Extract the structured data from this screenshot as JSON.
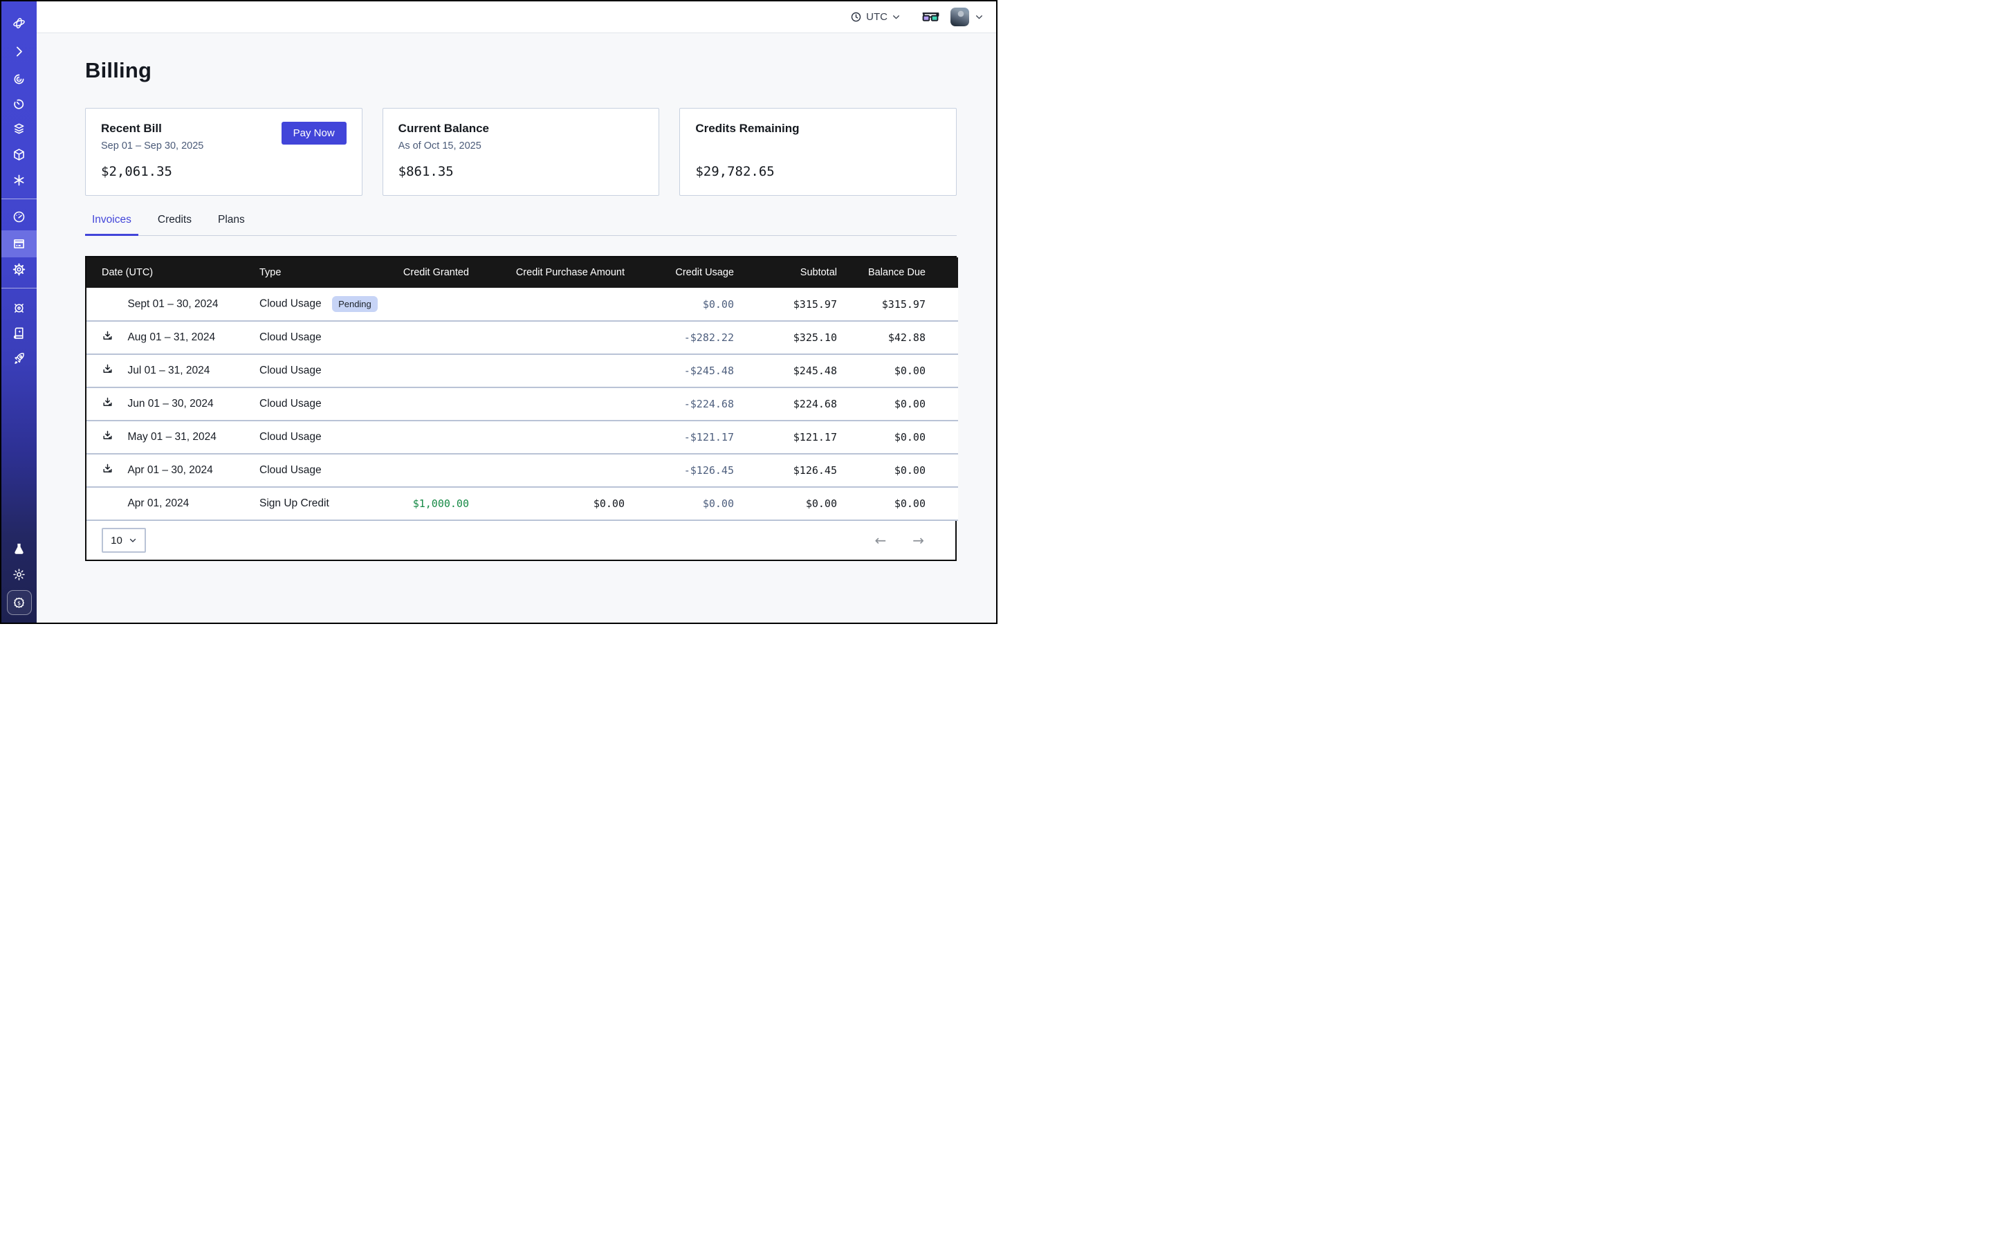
{
  "topbar": {
    "timezone_label": "UTC",
    "icons": [
      "clock-icon",
      "chevron-down-icon",
      "3d-glasses-icon",
      "user-avatar",
      "chevron-down-icon"
    ]
  },
  "sidebar": {
    "icons": [
      "logo",
      "chevron-right",
      "hypnosis-eye",
      "timer",
      "layers",
      "cube",
      "asterisk",
      "gauge",
      "credit-card",
      "gear",
      "ship-wheel",
      "book-sparkle",
      "rocket",
      "flask",
      "sun",
      "dollar-badge"
    ],
    "active_icon": "credit-card"
  },
  "page": {
    "title": "Billing"
  },
  "cards": [
    {
      "title": "Recent Bill",
      "subtitle": "Sep 01 – Sep 30, 2025",
      "amount": "$2,061.35",
      "action_label": "Pay Now"
    },
    {
      "title": "Current Balance",
      "subtitle": "As of Oct 15, 2025",
      "amount": "$861.35"
    },
    {
      "title": "Credits Remaining",
      "subtitle": "",
      "amount": "$29,782.65"
    }
  ],
  "tabs": [
    {
      "label": "Invoices",
      "active": true
    },
    {
      "label": "Credits",
      "active": false
    },
    {
      "label": "Plans",
      "active": false
    }
  ],
  "table": {
    "columns": [
      "Date (UTC)",
      "Type",
      "Credit Granted",
      "Credit Purchase Amount",
      "Credit Usage",
      "Subtotal",
      "Balance Due"
    ],
    "rows": [
      {
        "date": "Sept 01 – 30, 2024",
        "download": false,
        "type": "Cloud Usage",
        "badge": "Pending",
        "credit_granted": "",
        "credit_purchase": "",
        "credit_usage": "$0.00",
        "subtotal": "$315.97",
        "balance_due": "$315.97"
      },
      {
        "date": "Aug 01 – 31, 2024",
        "download": true,
        "type": "Cloud Usage",
        "credit_granted": "",
        "credit_purchase": "",
        "credit_usage": "-$282.22",
        "subtotal": "$325.10",
        "balance_due": "$42.88"
      },
      {
        "date": "Jul 01 – 31, 2024",
        "download": true,
        "type": "Cloud Usage",
        "credit_granted": "",
        "credit_purchase": "",
        "credit_usage": "-$245.48",
        "subtotal": "$245.48",
        "balance_due": "$0.00"
      },
      {
        "date": "Jun 01 – 30, 2024",
        "download": true,
        "type": "Cloud Usage",
        "credit_granted": "",
        "credit_purchase": "",
        "credit_usage": "-$224.68",
        "subtotal": "$224.68",
        "balance_due": "$0.00"
      },
      {
        "date": "May 01 – 31, 2024",
        "download": true,
        "type": "Cloud Usage",
        "credit_granted": "",
        "credit_purchase": "",
        "credit_usage": "-$121.17",
        "subtotal": "$121.17",
        "balance_due": "$0.00"
      },
      {
        "date": "Apr 01 – 30, 2024",
        "download": true,
        "type": "Cloud Usage",
        "credit_granted": "",
        "credit_purchase": "",
        "credit_usage": "-$126.45",
        "subtotal": "$126.45",
        "balance_due": "$0.00"
      },
      {
        "date": "Apr 01, 2024",
        "download": false,
        "type": "Sign Up Credit",
        "credit_granted_green": true,
        "credit_granted": "$1,000.00",
        "credit_purchase": "$0.00",
        "credit_usage": "$0.00",
        "subtotal": "$0.00",
        "balance_due": "$0.00"
      }
    ]
  },
  "pagination": {
    "page_size": "10",
    "prev_icon": "arrow-left",
    "next_icon": "arrow-right"
  },
  "colors": {
    "accent": "#4245d9",
    "sidebar_top": "#4448d4",
    "sidebar_bottom": "#1d2150",
    "sidebar_active": "#6b6fe2",
    "table_header_bg": "#171717",
    "row_divider": "#b9c3d6",
    "credit_usage_text": "#4e5f7e",
    "credit_granted_green": "#178a46",
    "badge_bg": "#c7d4f6",
    "glasses_left_lens": "#b49df3",
    "glasses_right_lens": "#41d6b5"
  }
}
